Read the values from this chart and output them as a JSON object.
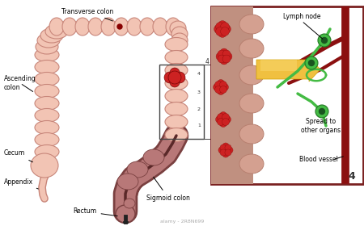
{
  "bg_color": "#ffffff",
  "colon_fill": "#f2c4b4",
  "colon_stroke": "#c8867a",
  "colon_inner": "#e8b0a0",
  "rectum_fill": "#b87878",
  "rectum_stroke": "#7a4040",
  "rectum_inner": "#5a2828",
  "tumor_red": "#cc2222",
  "tumor_dark": "#881111",
  "lymph_green": "#44bb44",
  "lymph_dark": "#227722",
  "blood_vessel_color": "#8B1010",
  "arrow_yellow": "#f0c040",
  "arrow_yellow_dark": "#d0a000",
  "box_border": "#7a2020",
  "panel_bg": "#ffffff",
  "label_fontsize": 5.5,
  "number_fontsize": 9,
  "labels": {
    "transverse_colon": "Transverse colon",
    "ascending_colon": "Ascending\ncolon",
    "cecum": "Cecum",
    "appendix": "Appendix",
    "rectum": "Rectum",
    "sigmoid_colon": "Sigmoid colon",
    "lymph_node": "Lymph node",
    "spread": "Spread to\nother organs",
    "blood_vessel": "Blood vessel"
  },
  "watermark": "alamy - 2R8N699"
}
